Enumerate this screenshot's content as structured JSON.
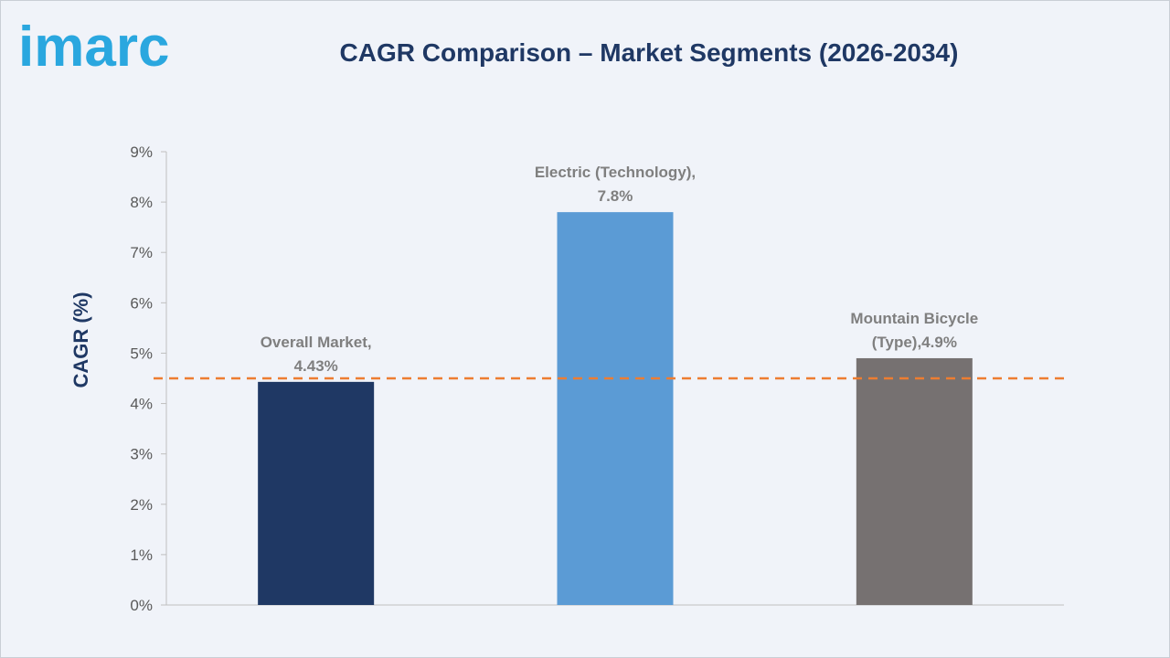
{
  "brand": {
    "name": "imarc",
    "color": "#2aa7df"
  },
  "chart_data": {
    "type": "bar",
    "title": "CAGR Comparison – Market Segments (2026-2034)",
    "ylabel": "CAGR (%)",
    "xlabel": "",
    "ylim": [
      0,
      9
    ],
    "yticks": [
      0,
      1,
      2,
      3,
      4,
      5,
      6,
      7,
      8,
      9
    ],
    "ytick_labels": [
      "0%",
      "1%",
      "2%",
      "3%",
      "4%",
      "5%",
      "6%",
      "7%",
      "8%",
      "9%"
    ],
    "categories": [
      "Overall Market",
      "Electric (Technology)",
      "Mountain Bicycle (Type)"
    ],
    "values": [
      4.43,
      7.8,
      4.9
    ],
    "data_labels": [
      [
        "Overall Market,",
        "4.43%"
      ],
      [
        "Electric (Technology),",
        "7.8%"
      ],
      [
        "Mountain Bicycle",
        "(Type),4.9%"
      ]
    ],
    "colors": [
      "#1f3864",
      "#5b9bd5",
      "#767171"
    ],
    "reference_line": {
      "value": 4.5,
      "color": "#ed7d31",
      "style": "dashed"
    },
    "grid": false,
    "legend": "none"
  }
}
